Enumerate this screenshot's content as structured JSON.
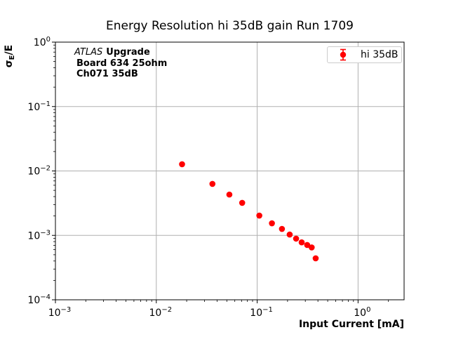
{
  "figure": {
    "title": "Energy Resolution hi 35dB gain Run 1709",
    "xlabel": "Input Current [mA]",
    "ylabel": {
      "sigma": "σ",
      "subscript": "E",
      "suffix": "/E"
    },
    "annotation": {
      "line1": {
        "italic": "ATLAS",
        "bold": "Upgrade"
      },
      "line2": "Board 634 25ohm",
      "line3": "Ch071 35dB"
    },
    "legend": {
      "entries": [
        {
          "label": "hi 35dB",
          "color": "#ff0000",
          "marker": "errorbar-circle"
        }
      ]
    }
  },
  "chart_data": {
    "type": "scatter",
    "title": "Energy Resolution hi 35dB gain Run 1709",
    "xlabel": "Input Current [mA]",
    "ylabel": "sigma_E/E",
    "x_scale": "log",
    "y_scale": "log",
    "xlim": [
      0.001,
      2.86
    ],
    "ylim": [
      0.0001,
      1.0
    ],
    "x_tick_exponents": [
      -3,
      -2,
      -1,
      0
    ],
    "y_tick_exponents": [
      0,
      -1,
      -2,
      -3,
      -4
    ],
    "grid": true,
    "grid_which": "major",
    "legend_position": "upper right",
    "series": [
      {
        "name": "hi 35dB",
        "color": "#ff0000",
        "marker": "circle",
        "x": [
          0.018,
          0.036,
          0.053,
          0.071,
          0.105,
          0.14,
          0.176,
          0.21,
          0.243,
          0.276,
          0.313,
          0.347,
          0.38
        ],
        "y": [
          0.0127,
          0.0063,
          0.0043,
          0.0032,
          0.00203,
          0.00154,
          0.00126,
          0.00103,
          0.00089,
          0.00078,
          0.00071,
          0.00065,
          0.00044
        ]
      }
    ]
  },
  "colors": {
    "background": "#ffffff",
    "grid": "#b0b0b0",
    "spine": "#000000",
    "text": "#000000",
    "series": "#ff0000",
    "legend_border": "#cccccc"
  }
}
